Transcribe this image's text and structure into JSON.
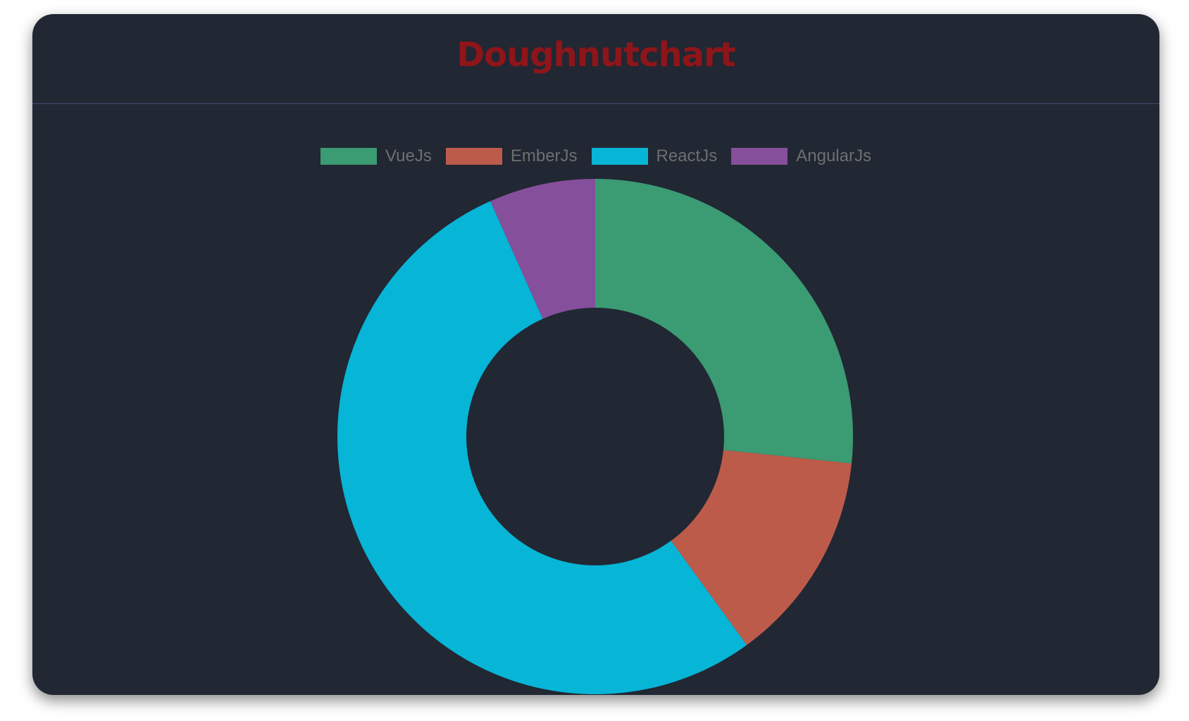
{
  "title": "Doughnutchart",
  "chart_data": {
    "type": "pie",
    "variant": "doughnut",
    "title": "Doughnutchart",
    "categories": [
      "VueJs",
      "EmberJs",
      "ReactJs",
      "AngularJs"
    ],
    "values": [
      4,
      2,
      8,
      1
    ],
    "colors": [
      "#3b9b73",
      "#bd5b4b",
      "#07b5d6",
      "#854f9c"
    ],
    "legend": "top"
  }
}
